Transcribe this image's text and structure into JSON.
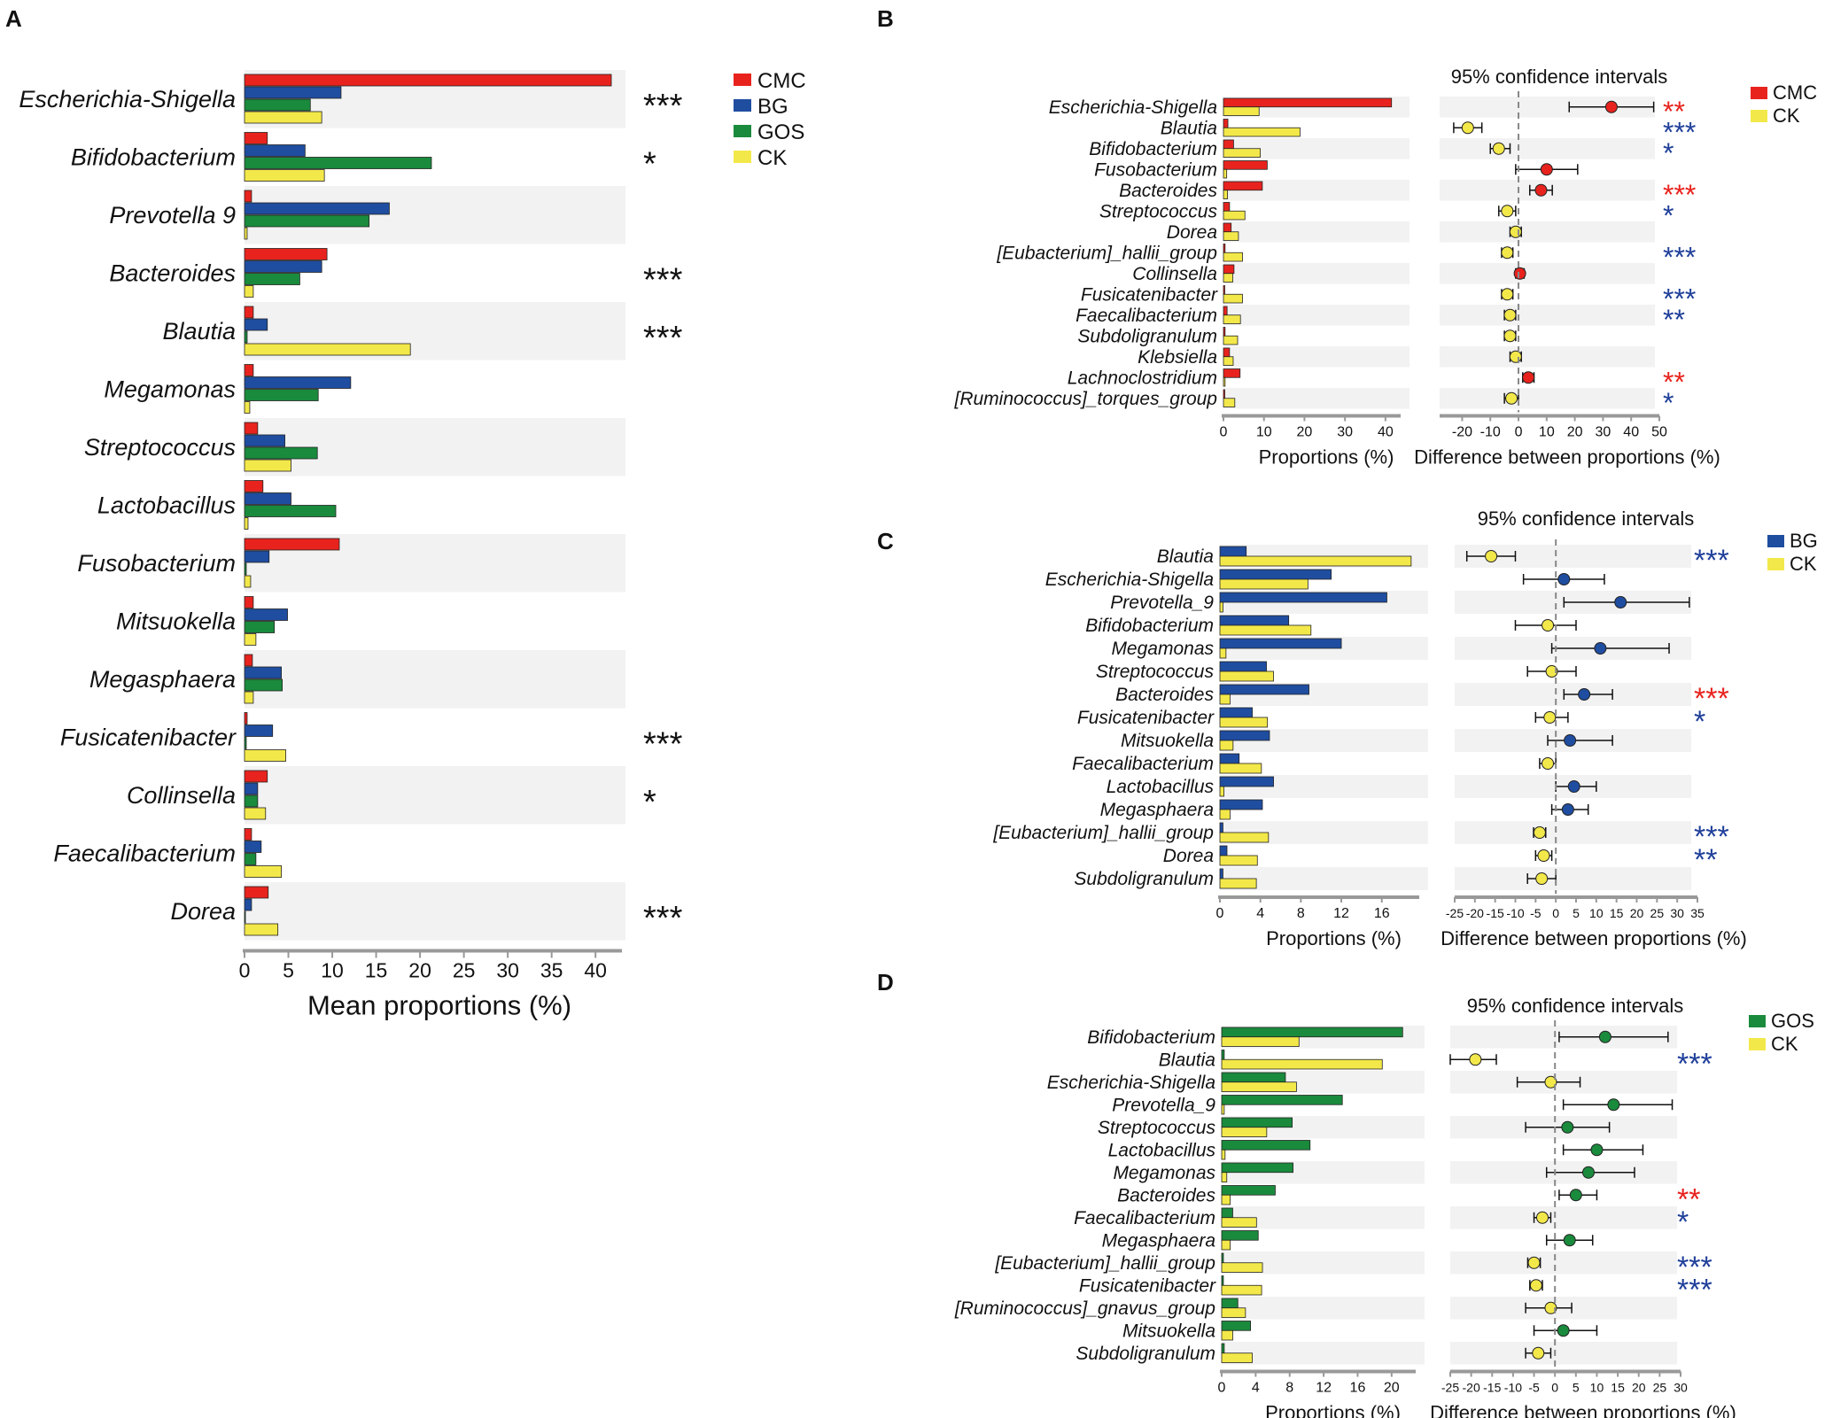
{
  "figure": {
    "panel_labels": [
      "A",
      "B",
      "C",
      "D"
    ]
  },
  "colors": {
    "CMC": "#e8231e",
    "BG": "#1f4da0",
    "GOS": "#1a8a3c",
    "CK": "#f3e84a",
    "star_black": "#111111",
    "star_red": "#e8231e",
    "star_blue": "#1f3f9a",
    "band": "#f2f2f2",
    "axis": "#999999"
  },
  "chart_data": [
    {
      "panel": "A",
      "type": "bar",
      "orientation": "horizontal",
      "xlabel": "Mean proportions (%)",
      "xlim": [
        0,
        42
      ],
      "xticks": [
        0,
        5,
        10,
        15,
        20,
        25,
        30,
        35,
        40
      ],
      "legend": [
        "CMC",
        "BG",
        "GOS",
        "CK"
      ],
      "categories": [
        "Escherichia-Shigella",
        "Bifidobacterium",
        "Prevotella 9",
        "Bacteroides",
        "Blautia",
        "Megamonas",
        "Streptococcus",
        "Lactobacillus",
        "Fusobacterium",
        "Mitsuokella",
        "Megasphaera",
        "Fusicatenibacter",
        "Collinsella",
        "Faecalibacterium",
        "Dorea"
      ],
      "series": [
        {
          "name": "CMC",
          "values": [
            41.8,
            2.6,
            0.8,
            9.4,
            1.0,
            1.0,
            1.5,
            2.1,
            10.8,
            1.0,
            0.9,
            0.3,
            2.6,
            0.8,
            2.7
          ]
        },
        {
          "name": "BG",
          "values": [
            11.0,
            6.9,
            16.5,
            8.8,
            2.6,
            12.1,
            4.6,
            5.3,
            2.8,
            4.9,
            4.2,
            3.2,
            1.5,
            1.9,
            0.8
          ]
        },
        {
          "name": "GOS",
          "values": [
            7.5,
            21.3,
            14.2,
            6.3,
            0.3,
            8.4,
            8.3,
            10.4,
            0.2,
            3.4,
            4.3,
            0.2,
            1.5,
            1.3,
            0.1
          ]
        },
        {
          "name": "CK",
          "values": [
            8.8,
            9.1,
            0.3,
            1.0,
            18.9,
            0.6,
            5.3,
            0.4,
            0.7,
            1.3,
            1.0,
            4.7,
            2.4,
            4.2,
            3.8
          ]
        }
      ],
      "significance": [
        "***",
        "*",
        "",
        "***",
        "***",
        "",
        "",
        "",
        "",
        "",
        "",
        "***",
        "*",
        "",
        "***"
      ]
    },
    {
      "panel": "B",
      "type": "bar",
      "orientation": "horizontal",
      "title": "95% confidence intervals",
      "xlabel_left": "Proportions (%)",
      "xlabel_right": "Difference between proportions (%)",
      "legend": [
        "CMC",
        "CK"
      ],
      "left_xlim": [
        0,
        42
      ],
      "left_xticks": [
        0,
        10,
        20,
        30,
        40
      ],
      "right_xlim": [
        -28,
        50
      ],
      "right_xticks": [
        -20,
        -10,
        0,
        10,
        20,
        30,
        40,
        50
      ],
      "categories": [
        "Escherichia-Shigella",
        "Blautia",
        "Bifidobacterium",
        "Fusobacterium",
        "Bacteroides",
        "Streptococcus",
        "Dorea",
        "[Eubacterium]_hallii_group",
        "Collinsella",
        "Fusicatenibacter",
        "Faecalibacterium",
        "Subdoligranulum",
        "Klebsiella",
        "Lachnoclostridium",
        "[Ruminococcus]_torques_group"
      ],
      "series": [
        {
          "name": "CMC",
          "values": [
            41.5,
            1.1,
            2.5,
            10.8,
            9.6,
            1.5,
            1.9,
            0.4,
            2.6,
            0.3,
            0.9,
            0.4,
            1.5,
            4.1,
            0.3
          ]
        },
        {
          "name": "CK",
          "values": [
            8.8,
            18.9,
            9.1,
            0.8,
            1.0,
            5.3,
            3.7,
            4.7,
            2.3,
            4.7,
            4.2,
            3.5,
            2.4,
            0.4,
            2.8
          ]
        }
      ],
      "diff": [
        33,
        -18,
        -7,
        10,
        8,
        -4,
        -1,
        -4,
        0.5,
        -4,
        -3,
        -3,
        -1,
        3.5,
        -2.5
      ],
      "ci_low": [
        18,
        -23,
        -10,
        -1,
        4,
        -7,
        -3,
        -6,
        -1,
        -6,
        -5,
        -5,
        -3,
        1.5,
        -5
      ],
      "ci_high": [
        48,
        -13,
        -3,
        21,
        12,
        -1,
        1,
        -2,
        2,
        -2,
        -1,
        -1,
        1,
        5.5,
        0
      ],
      "significance": [
        "**",
        "***",
        "*",
        "",
        "***",
        "*",
        "",
        "***",
        "",
        "***",
        "**",
        "",
        "",
        "**",
        "*"
      ],
      "sig_group": [
        "CMC",
        "CK",
        "CK",
        "",
        "CMC",
        "CK",
        "",
        "CK",
        "",
        "CK",
        "CK",
        "",
        "",
        "CMC",
        "CK"
      ]
    },
    {
      "panel": "C",
      "type": "bar",
      "orientation": "horizontal",
      "title": "95% confidence intervals",
      "xlabel_left": "Proportions (%)",
      "xlabel_right": "Difference between proportions (%)",
      "legend": [
        "BG",
        "CK"
      ],
      "left_xlim": [
        0,
        19
      ],
      "left_xticks": [
        0,
        4,
        8,
        12,
        16
      ],
      "right_xlim": [
        -25,
        35
      ],
      "right_xticks": [
        -25,
        -20,
        -15,
        -10,
        -5,
        0,
        5,
        10,
        15,
        20,
        25,
        30,
        35
      ],
      "categories": [
        "Blautia",
        "Escherichia-Shigella",
        "Prevotella_9",
        "Bifidobacterium",
        "Megamonas",
        "Streptococcus",
        "Bacteroides",
        "Fusicatenibacter",
        "Mitsuokella",
        "Faecalibacterium",
        "Lactobacillus",
        "Megasphaera",
        "[Eubacterium]_hallii_group",
        "Dorea",
        "Subdoligranulum"
      ],
      "series": [
        {
          "name": "BG",
          "values": [
            2.6,
            11.0,
            16.5,
            6.8,
            12.0,
            4.6,
            8.8,
            3.2,
            4.9,
            1.9,
            5.3,
            4.2,
            0.3,
            0.7,
            0.3
          ]
        },
        {
          "name": "CK",
          "values": [
            18.9,
            8.7,
            0.3,
            9.0,
            0.6,
            5.3,
            1.0,
            4.7,
            1.3,
            4.1,
            0.4,
            1.0,
            4.8,
            3.7,
            3.6
          ]
        }
      ],
      "diff": [
        -16,
        2,
        16,
        -2,
        11,
        -1,
        7,
        -1.5,
        3.5,
        -2,
        4.5,
        3,
        -4,
        -3,
        -3.5
      ],
      "ci_low": [
        -22,
        -8,
        2,
        -10,
        -1,
        -7,
        2,
        -5,
        -2,
        -4,
        0,
        -1,
        -5.5,
        -5,
        -7
      ],
      "ci_high": [
        -10,
        12,
        33,
        5,
        28,
        5,
        14,
        3,
        14,
        0,
        10,
        8,
        -2.5,
        -1,
        0
      ],
      "significance": [
        "***",
        "",
        "",
        "",
        "",
        "",
        "***",
        "*",
        "",
        "",
        "",
        "",
        "***",
        "**",
        ""
      ],
      "sig_group": [
        "CK",
        "",
        "",
        "",
        "",
        "",
        "BG",
        "CK",
        "",
        "",
        "",
        "",
        "CK",
        "CK",
        ""
      ]
    },
    {
      "panel": "D",
      "type": "bar",
      "orientation": "horizontal",
      "title": "95% confidence intervals",
      "xlabel_left": "Proportions (%)",
      "xlabel_right": "Difference between proportions (%)",
      "legend": [
        "GOS",
        "CK"
      ],
      "left_xlim": [
        0,
        22
      ],
      "left_xticks": [
        0,
        4,
        8,
        12,
        16,
        20
      ],
      "right_xlim": [
        -25,
        30
      ],
      "right_xticks": [
        -25,
        -20,
        -15,
        -10,
        -5,
        0,
        5,
        10,
        15,
        20,
        25,
        30
      ],
      "categories": [
        "Bifidobacterium",
        "Blautia",
        "Escherichia-Shigella",
        "Prevotella_9",
        "Streptococcus",
        "Lactobacillus",
        "Megamonas",
        "Bacteroides",
        "Faecalibacterium",
        "Megasphaera",
        "[Eubacterium]_hallii_group",
        "Fusicatenibacter",
        "[Ruminococcus]_gnavus_group",
        "Mitsuokella",
        "Subdoligranulum"
      ],
      "series": [
        {
          "name": "GOS",
          "values": [
            21.3,
            0.3,
            7.5,
            14.2,
            8.3,
            10.4,
            8.4,
            6.3,
            1.3,
            4.3,
            0.2,
            0.2,
            1.9,
            3.4,
            0.3
          ]
        },
        {
          "name": "CK",
          "values": [
            9.1,
            18.9,
            8.8,
            0.3,
            5.3,
            0.4,
            0.6,
            1.0,
            4.1,
            1.0,
            4.8,
            4.7,
            2.8,
            1.3,
            3.6
          ]
        }
      ],
      "diff": [
        12,
        -19,
        -1,
        14,
        3,
        10,
        8,
        5,
        -3,
        3.5,
        -5,
        -4.5,
        -1,
        2,
        -4
      ],
      "ci_low": [
        1,
        -25,
        -9,
        2,
        -7,
        2,
        -2,
        1,
        -5,
        -2,
        -6.5,
        -6,
        -7,
        -5,
        -7
      ],
      "ci_high": [
        27,
        -14,
        6,
        28,
        13,
        21,
        19,
        10,
        -1,
        9,
        -3.5,
        -3,
        4,
        10,
        -1
      ],
      "significance": [
        "",
        "***",
        "",
        "",
        "",
        "",
        "",
        "**",
        "*",
        "",
        "***",
        "***",
        "",
        "",
        ""
      ],
      "sig_group": [
        "",
        "CK",
        "",
        "",
        "",
        "",
        "",
        "GOS",
        "CK",
        "",
        "CK",
        "CK",
        "",
        "",
        ""
      ]
    }
  ]
}
